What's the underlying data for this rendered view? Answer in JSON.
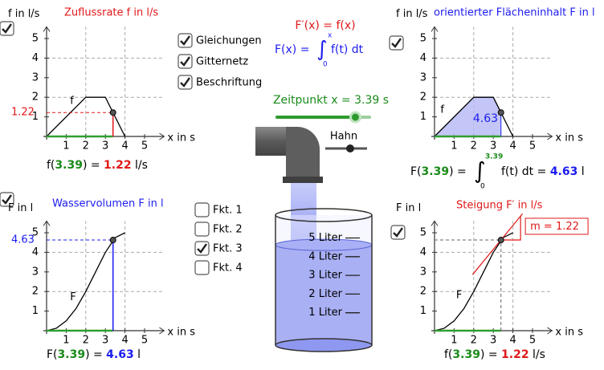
{
  "x_value": 3.39,
  "f_value": 1.22,
  "F_value": 4.63,
  "f": {
    "name": "f",
    "x": [
      0,
      2,
      3,
      4
    ],
    "y": [
      0,
      2,
      2,
      0
    ]
  },
  "F": {
    "name": "F",
    "x": [
      0,
      0.5,
      1,
      1.5,
      2,
      2.5,
      3,
      3.5,
      4
    ],
    "y": [
      0,
      0.125,
      0.5,
      1.125,
      2,
      3,
      4,
      4.75,
      5
    ]
  },
  "graphs": [
    {
      "title": "Zuflussrate f in l/s",
      "color": "#e01818",
      "checked": true,
      "y_label": "f in l/s",
      "x_label": "x in s",
      "curve": "f",
      "mode": "value",
      "xlim": [
        0,
        6
      ],
      "ylim": [
        0,
        5.6
      ],
      "xticks": [
        1,
        2,
        3,
        4,
        5
      ],
      "yticks": [
        1,
        2,
        3,
        4,
        5
      ],
      "grid": [
        2,
        4
      ]
    },
    {
      "title": "orientierter Flächeninhalt F in l",
      "color": "#1c1cf0",
      "checked": true,
      "y_label": "f in l/s",
      "x_label": "x in s",
      "curve": "f",
      "mode": "area",
      "xlim": [
        0,
        6
      ],
      "ylim": [
        0,
        5.6
      ],
      "xticks": [
        1,
        2,
        3,
        4,
        5
      ],
      "yticks": [
        1,
        2,
        3,
        4,
        5
      ],
      "grid": [
        2,
        4
      ]
    },
    {
      "title": "Wasservolumen F in l",
      "color": "#1c1cf0",
      "checked": true,
      "y_label": "F in l",
      "x_label": "x in s",
      "curve": "F",
      "mode": "value",
      "xlim": [
        0,
        6
      ],
      "ylim": [
        0,
        5.6
      ],
      "xticks": [
        1,
        2,
        3,
        4,
        5
      ],
      "yticks": [
        1,
        2,
        3,
        4,
        5
      ],
      "grid": [
        2,
        4
      ]
    },
    {
      "title": "Steigung F′ in l/s",
      "color": "#e01818",
      "checked": true,
      "y_label": "F in l",
      "x_label": "x in s",
      "curve": "F",
      "mode": "tangent",
      "xlim": [
        0,
        6
      ],
      "ylim": [
        0,
        5.6
      ],
      "xticks": [
        1,
        2,
        3,
        4,
        5
      ],
      "yticks": [
        1,
        2,
        3,
        4,
        5
      ],
      "grid": [
        2,
        4
      ]
    }
  ],
  "formula": {
    "f_lhs": "f(",
    "F_lhs": "F(",
    "eq": ") = ",
    "unit_rate": " l/s",
    "unit_volume": " l",
    "integral": "∫",
    "lower": "0",
    "integrand": " f(t) dt = ",
    "slope": "m = "
  },
  "center": {
    "derivative": "F′(x) = f(x)",
    "integral_lhs": "F(x) = ",
    "integral": "∫",
    "lower": "0",
    "upper": "x",
    "integrand": " f(t) dt",
    "time_label": "Zeitpunkt x = 3.39 s",
    "slider_range": [
      0,
      4
    ],
    "tap_label": "Hahn"
  },
  "options": [
    {
      "label": "Gleichungen",
      "checked": true
    },
    {
      "label": "Gitternetz",
      "checked": true
    },
    {
      "label": "Beschriftung",
      "checked": true
    }
  ],
  "functions": [
    {
      "label": "Fkt. 1",
      "checked": false
    },
    {
      "label": "Fkt. 2",
      "checked": false
    },
    {
      "label": "Fkt. 3",
      "checked": true
    },
    {
      "label": "Fkt. 4",
      "checked": false
    }
  ],
  "beaker_marks": [
    {
      "value": 5,
      "label": "5 Liter"
    },
    {
      "value": 4,
      "label": "4 Liter"
    },
    {
      "value": 3,
      "label": "3 Liter"
    },
    {
      "value": 2,
      "label": "2 Liter"
    },
    {
      "value": 1,
      "label": "1 Liter"
    }
  ]
}
